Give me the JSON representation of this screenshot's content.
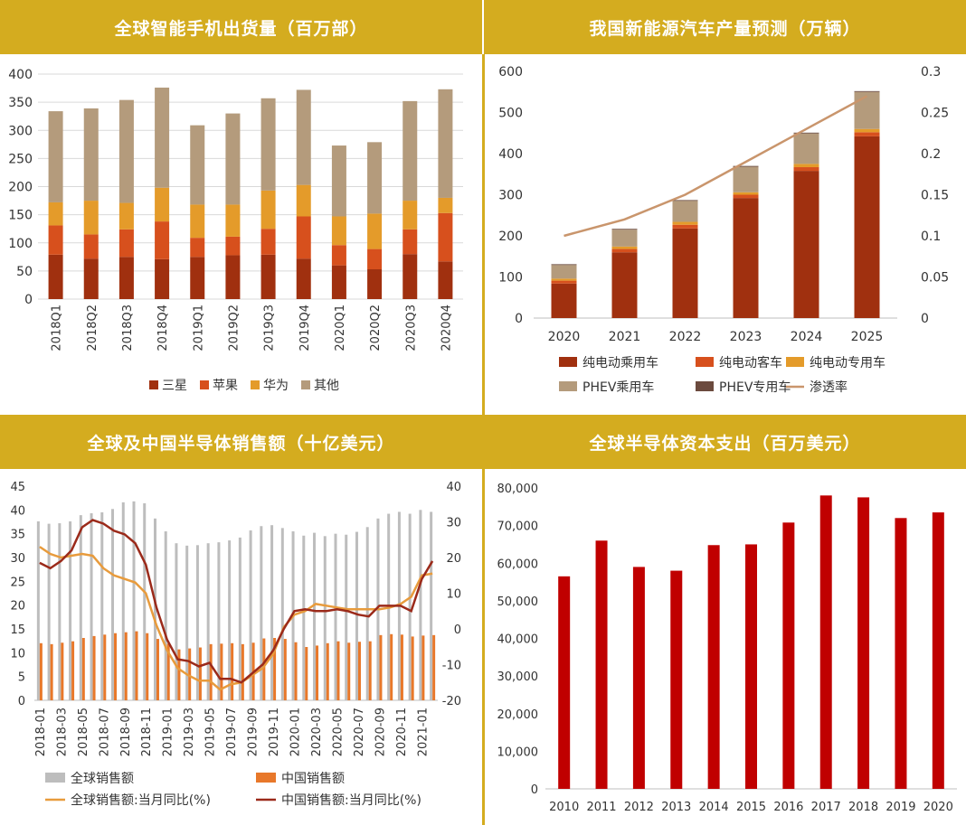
{
  "colors": {
    "header_bg": "#d4ac1f",
    "header_text": "#ffffff"
  },
  "chart_data": [
    {
      "type": "bar",
      "stacked": true,
      "title": "全球智能手机出货量（百万部）",
      "categories": [
        "2018Q1",
        "2018Q2",
        "2018Q3",
        "2018Q4",
        "2019Q1",
        "2019Q2",
        "2019Q3",
        "2019Q4",
        "2020Q1",
        "2020Q2",
        "2020Q3",
        "2020Q4"
      ],
      "series": [
        {
          "name": "三星",
          "color": "#a0300f",
          "values": [
            79,
            72,
            75,
            71,
            75,
            78,
            79,
            72,
            60,
            53,
            80,
            67
          ]
        },
        {
          "name": "苹果",
          "color": "#d7501d",
          "values": [
            52,
            43,
            49,
            67,
            34,
            33,
            46,
            75,
            36,
            36,
            44,
            86
          ]
        },
        {
          "name": "华为",
          "color": "#e49b2a",
          "values": [
            41,
            60,
            47,
            60,
            59,
            57,
            68,
            56,
            51,
            63,
            51,
            27
          ]
        },
        {
          "name": "其他",
          "color": "#b49b7c",
          "values": [
            162,
            164,
            183,
            178,
            141,
            162,
            164,
            169,
            126,
            127,
            177,
            193
          ]
        }
      ],
      "ylim": [
        0,
        400
      ],
      "yticks": [
        "0",
        "50",
        "100",
        "150",
        "200",
        "250",
        "300",
        "350",
        "400"
      ],
      "grid": true,
      "legend": "bottom"
    },
    {
      "type": "bar",
      "stacked": true,
      "title": "我国新能源汽车产量预测（万辆）",
      "categories": [
        "2020",
        "2021",
        "2022",
        "2023",
        "2024",
        "2025"
      ],
      "series": [
        {
          "name": "纯电动乘用车",
          "color": "#a0300f",
          "values": [
            84,
            160,
            218,
            292,
            358,
            442
          ]
        },
        {
          "name": "纯电动客车",
          "color": "#d7501d",
          "values": [
            7,
            8,
            9,
            8,
            9,
            10
          ]
        },
        {
          "name": "纯电动专用车",
          "color": "#e49b2a",
          "values": [
            5,
            6,
            7,
            6,
            8,
            8
          ]
        },
        {
          "name": "PHEV乘用车",
          "color": "#b49b7c",
          "values": [
            33,
            41,
            51,
            62,
            74,
            90
          ]
        },
        {
          "name": "PHEV专用车",
          "color": "#6b4a3e",
          "values": [
            2,
            2,
            2,
            2,
            2,
            2
          ]
        }
      ],
      "line_series": {
        "name": "渗透率",
        "color": "#c9956c",
        "axis": "right",
        "values": [
          0.1,
          0.12,
          0.15,
          0.19,
          0.23,
          0.27
        ]
      },
      "ylim": [
        0,
        600
      ],
      "yticks": [
        "0",
        "100",
        "200",
        "300",
        "400",
        "500",
        "600"
      ],
      "y2lim": [
        0,
        0.3
      ],
      "y2ticks": [
        "0",
        "0.05",
        "0.1",
        "0.15",
        "0.2",
        "0.25",
        "0.3"
      ],
      "grid": false,
      "legend": "bottom"
    },
    {
      "type": "bar",
      "title": "全球及中国半导体销售额（十亿美元）",
      "categories": [
        "2018-01",
        "2018-02",
        "2018-03",
        "2018-04",
        "2018-05",
        "2018-06",
        "2018-07",
        "2018-08",
        "2018-09",
        "2018-10",
        "2018-11",
        "2018-12",
        "2019-01",
        "2019-02",
        "2019-03",
        "2019-04",
        "2019-05",
        "2019-06",
        "2019-07",
        "2019-08",
        "2019-09",
        "2019-10",
        "2019-11",
        "2019-12",
        "2020-01",
        "2020-02",
        "2020-03",
        "2020-04",
        "2020-05",
        "2020-06",
        "2020-07",
        "2020-08",
        "2020-09",
        "2020-10",
        "2020-11",
        "2020-12",
        "2021-01",
        "2021-02"
      ],
      "xtick_labels": [
        "2018-01",
        "2018-03",
        "2018-05",
        "2018-07",
        "2018-09",
        "2018-11",
        "2019-01",
        "2019-03",
        "2019-05",
        "2019-07",
        "2019-09",
        "2019-11",
        "2020-01",
        "2020-03",
        "2020-05",
        "2020-07",
        "2020-09",
        "2020-11",
        "2021-01"
      ],
      "series": [
        {
          "name": "全球销售额",
          "color": "#bdbdbd",
          "axis": "left",
          "values": [
            37.6,
            37.1,
            37.2,
            37.6,
            38.9,
            39.3,
            39.5,
            40.2,
            41.6,
            41.8,
            41.4,
            38.2,
            35.5,
            33.0,
            32.5,
            32.6,
            33.0,
            33.2,
            33.6,
            34.2,
            35.7,
            36.6,
            36.8,
            36.2,
            35.5,
            34.6,
            35.2,
            34.5,
            35.0,
            34.8,
            35.4,
            36.4,
            38.2,
            39.2,
            39.6,
            39.2,
            40.0,
            39.6
          ]
        },
        {
          "name": "中国销售额",
          "color": "#e8782a",
          "axis": "left",
          "values": [
            12.0,
            11.8,
            12.1,
            12.4,
            13.1,
            13.5,
            13.8,
            14.1,
            14.3,
            14.5,
            14.1,
            12.9,
            11.9,
            10.7,
            10.9,
            11.1,
            11.8,
            11.9,
            12.0,
            11.8,
            12.1,
            13.0,
            13.1,
            12.9,
            12.2,
            11.2,
            11.5,
            12.0,
            12.4,
            12.1,
            12.3,
            12.4,
            13.7,
            13.9,
            13.8,
            13.4,
            13.6,
            13.7
          ]
        },
        {
          "name": "全球销售额:当月同比(%)",
          "color": "#e89b3c",
          "type": "line",
          "axis": "right",
          "values": [
            23,
            21,
            20,
            20.5,
            21,
            20.5,
            17,
            15,
            14,
            13,
            10,
            1,
            -6,
            -11,
            -13,
            -14.5,
            -14.5,
            -17,
            -15.5,
            -15,
            -13,
            -11,
            -7,
            0.5,
            4,
            5,
            7,
            6.5,
            6,
            5.5,
            5.5,
            5.5,
            5.5,
            6,
            7,
            9,
            15,
            15.5
          ]
        },
        {
          "name": "中国销售额:当月同比(%)",
          "color": "#9b2a1a",
          "type": "line",
          "axis": "right",
          "values": [
            18.5,
            17,
            19,
            22,
            28.5,
            30.5,
            29.5,
            27.5,
            26.5,
            24,
            18,
            6,
            -3,
            -8.5,
            -9,
            -10.5,
            -9.5,
            -14,
            -14,
            -15,
            -12.5,
            -10,
            -6,
            0,
            5,
            5.5,
            5,
            5,
            5.5,
            5,
            4,
            3.5,
            6.5,
            6.5,
            6.5,
            5,
            14,
            19
          ]
        }
      ],
      "ylim": [
        0,
        45
      ],
      "yticks": [
        "0",
        "5",
        "10",
        "15",
        "20",
        "25",
        "30",
        "35",
        "40",
        "45"
      ],
      "y2lim": [
        -20,
        40
      ],
      "y2ticks": [
        "-20",
        "-10",
        "0",
        "10",
        "20",
        "30",
        "40"
      ],
      "grid": false,
      "legend": "bottom"
    },
    {
      "type": "bar",
      "title": "全球半导体资本支出（百万美元）",
      "categories": [
        "2010",
        "2011",
        "2012",
        "2013",
        "2014",
        "2015",
        "2016",
        "2017",
        "2018",
        "2019",
        "2020"
      ],
      "series": [
        {
          "color": "#c00000",
          "values": [
            56500,
            66000,
            59000,
            58000,
            64800,
            65000,
            70800,
            78000,
            77500,
            72000,
            73500
          ]
        }
      ],
      "ylim": [
        0,
        80000
      ],
      "yticks": [
        "0",
        "10,000",
        "20,000",
        "30,000",
        "40,000",
        "50,000",
        "60,000",
        "70,000",
        "80,000"
      ],
      "grid": false,
      "legend": "none"
    }
  ]
}
